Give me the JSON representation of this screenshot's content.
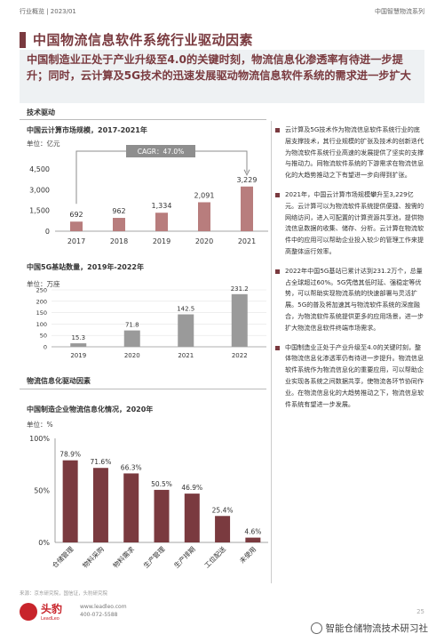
{
  "header": {
    "left": "行业概览 | 2023/01",
    "right": "中国智慧物流系列"
  },
  "title": "中国物流信息软件系统行业驱动因素",
  "summary": "中国制造业正处于产业升级至4.0的关键时刻，物流信息化渗透率有待进一步提升；同时，云计算及5G技术的迅速发展驱动物流信息软件系统的需求进一步扩大",
  "sections": {
    "tech": "技术驱动",
    "info": "物流信息化驱动因素"
  },
  "chart1_meta": {
    "title": "中国云计算市场规模，2017-2021年",
    "unit": "单位：亿元",
    "cagr": "CAGR：47.0%"
  },
  "chart2_meta": {
    "title": "中国5G基站数量，2019年-2022年",
    "unit": "单位：万座"
  },
  "chart3_meta": {
    "title": "中国制造企业物流信息化情况，2020年",
    "unit": "单位：%"
  },
  "bullets": [
    "云计算及5G技术作为物流信息软件系统行业的底层支撑技术，其行业规模的扩张及技术的创新迭代为物流软件系统行业高速的发展提供了坚实的支撑与推动力。同物流软件系统的下游需求在物流信息化的大趋势推动之下有望进一步向得到扩张。",
    "2021年，中国云计算市场规模攀升至3,229亿元。云计算可以为物流软件系统提供便捷、按需的网络访问，进入可配置的计算资源共享池，提供物流信息数据的收集、储存、分析。云计算在物流软件中的应用可以帮助企业投入较少的管理工作来提高整体运行效率。",
    "2022年中国5G基站已累计达到231.2万个，总量占全球超过60%。5G凭借其低时延、强稳定等优势，可以帮助实现物流系统的快速部署与灵活扩展。5G的普及将加速其与物流软件系统的深度融合，为物流软件系统提供更多的应用场景，进一步扩大物流信息软件终端市场需求。",
    "中国制造业正处于产业升级至4.0的关键时刻，整体物流信息化渗透率仍有待进一步提升。物流信息软件系统作为物流信息化的重要应用，可以帮助企业实现各系统之间数据共享，使物流各环节协同作业。在物流信息化的大趋势推动之下，物流信息软件系统有望进一步发展。"
  ],
  "footer": {
    "source": "来源：京东研究院，国信证，头豹研究院",
    "brand": "头豹",
    "brand_sub": "LeadLeo",
    "website": "www.leadleo.com",
    "phone": "400-072-5588",
    "page": "25",
    "watermark": "智能仓储物流技术研习社"
  },
  "colors": {
    "accent": "#7a3a3f",
    "bar": "#b87d7d",
    "bar2": "#9a9a9a"
  },
  "chart_data": [
    {
      "type": "bar",
      "title": "中国云计算市场规模，2017-2021年",
      "categories": [
        "2017",
        "2018",
        "2019",
        "2020",
        "2021"
      ],
      "values": [
        692,
        962,
        1334,
        2091,
        3229
      ],
      "labels": [
        "692",
        "962",
        "1,334",
        "2,091",
        "3,229"
      ],
      "yticks": [
        "4,500",
        "3,000",
        "1,500",
        "0"
      ],
      "ylim": [
        0,
        4500
      ],
      "annotation": "CAGR：47.0%"
    },
    {
      "type": "bar",
      "title": "中国5G基站数量，2019年-2022年",
      "categories": [
        "2019",
        "2020",
        "2021",
        "2022"
      ],
      "values": [
        15.3,
        71.8,
        142.5,
        231.2
      ],
      "yticks": [
        "250",
        "200",
        "150",
        "100",
        "50",
        "0"
      ],
      "ylim": [
        0,
        250
      ]
    },
    {
      "type": "bar",
      "title": "中国制造企业物流信息化情况，2020年",
      "categories": [
        "仓储管理",
        "物料采购",
        "物料需求",
        "生产管理",
        "生产排期",
        "工位配送",
        "未使用"
      ],
      "values": [
        78.9,
        71.6,
        66.3,
        50.5,
        46.9,
        25.4,
        4.6
      ],
      "labels": [
        "78.9%",
        "71.6%",
        "66.3%",
        "50.5%",
        "46.9%",
        "25.4%",
        "4.6%"
      ],
      "yticks": [
        "100%",
        "50%",
        "0%"
      ],
      "ylim": [
        0,
        100
      ]
    }
  ]
}
